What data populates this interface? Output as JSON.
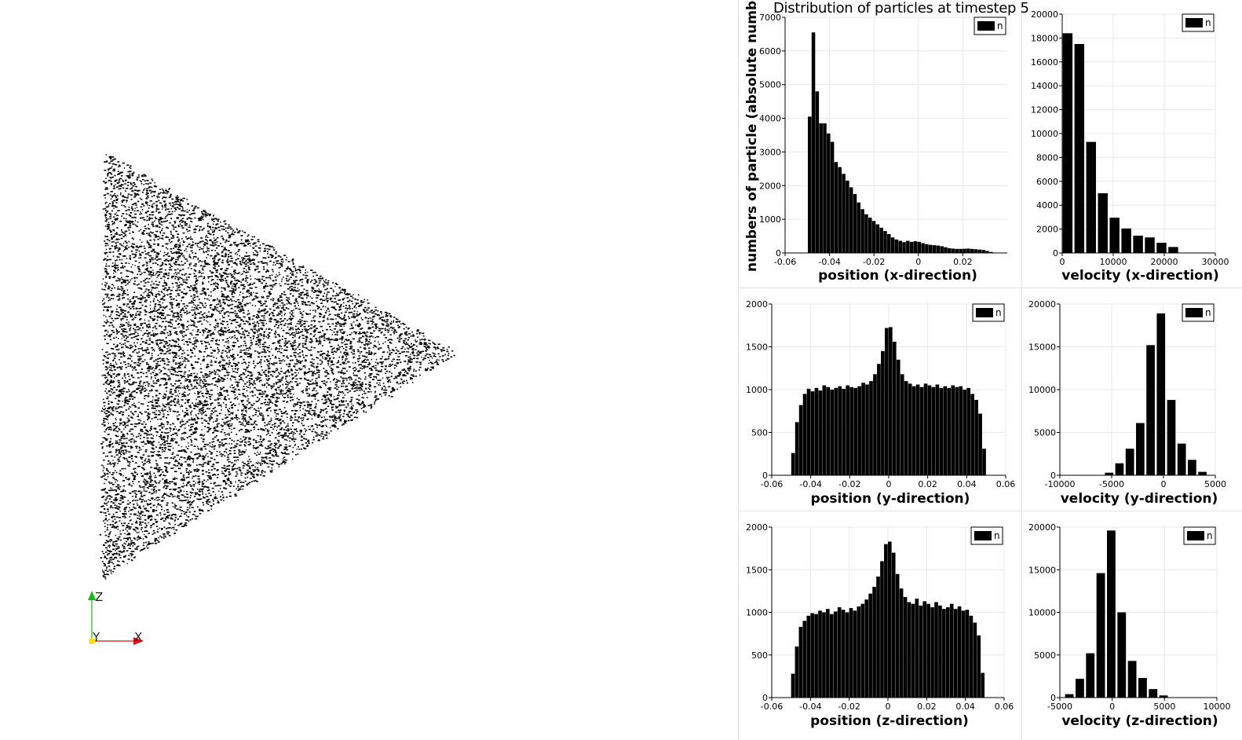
{
  "title": "Distribution of particles at timestep 5",
  "ylabel": "numbers of particle (absolute numbers)",
  "axes_widget": {
    "x_label": "X",
    "y_label": "Y",
    "z_label": "Z"
  },
  "colors": {
    "bar": "#000000",
    "x_axis": "#e01010",
    "y_axis": "#ffe000",
    "z_axis": "#10c010",
    "grid": "#e8e8e8"
  },
  "chart_data": [
    {
      "type": "bar",
      "xlabel": "position (x-direction)",
      "legend": "n",
      "legend_position": "top-right",
      "xlim": [
        -0.06,
        0.04
      ],
      "ylim": [
        0,
        7000
      ],
      "xticks": [
        -0.06,
        -0.04,
        -0.02,
        0,
        0.02
      ],
      "xtick_labels": [
        "-0.06",
        "-0.04",
        "-0.02",
        "0",
        "0.02"
      ],
      "yticks": [
        0,
        1000,
        2000,
        3000,
        4000,
        5000,
        6000,
        7000
      ],
      "ytick_labels": [
        "0",
        "1000",
        "2000",
        "3000",
        "4000",
        "5000",
        "6000",
        "7000"
      ],
      "x": [
        -0.0489,
        -0.0472,
        -0.0455,
        -0.0438,
        -0.0421,
        -0.0404,
        -0.0387,
        -0.037,
        -0.0353,
        -0.0336,
        -0.0319,
        -0.0302,
        -0.0285,
        -0.0268,
        -0.0251,
        -0.0234,
        -0.0217,
        -0.02,
        -0.0183,
        -0.0166,
        -0.0149,
        -0.0132,
        -0.0115,
        -0.0098,
        -0.0081,
        -0.0064,
        -0.0047,
        -0.003,
        -0.0013,
        0.0004,
        0.0021,
        0.0038,
        0.0055,
        0.0072,
        0.0089,
        0.0106,
        0.0123,
        0.014,
        0.0157,
        0.0174,
        0.0191,
        0.0208,
        0.0225,
        0.0242,
        0.0259,
        0.0276,
        0.0293,
        0.031,
        0.0327,
        0.0344
      ],
      "values": [
        4050,
        6550,
        4800,
        3850,
        3850,
        3550,
        3300,
        2700,
        2550,
        2350,
        2150,
        1950,
        1750,
        1500,
        1300,
        1150,
        1050,
        950,
        850,
        750,
        650,
        560,
        460,
        400,
        360,
        320,
        360,
        330,
        350,
        330,
        290,
        260,
        240,
        230,
        220,
        200,
        170,
        140,
        130,
        120,
        120,
        125,
        130,
        120,
        110,
        100,
        90,
        60,
        30,
        10
      ],
      "bar_width": 0.0017
    },
    {
      "type": "bar",
      "xlabel": "velocity (x-direction)",
      "legend": "n",
      "legend_position": "top-right",
      "xlim": [
        0,
        30000
      ],
      "ylim": [
        0,
        20000
      ],
      "xticks": [
        0,
        10000,
        20000,
        30000
      ],
      "xtick_labels": [
        "0",
        "10000",
        "20000",
        "30000"
      ],
      "yticks": [
        0,
        2000,
        4000,
        6000,
        8000,
        10000,
        12000,
        14000,
        16000,
        18000,
        20000
      ],
      "ytick_labels": [
        "0",
        "2000",
        "4000",
        "6000",
        "8000",
        "10000",
        "12000",
        "14000",
        "16000",
        "18000",
        "20000"
      ],
      "x": [
        1250,
        3550,
        5850,
        8150,
        10450,
        12750,
        15050,
        17350,
        19650,
        21950,
        24250
      ],
      "values": [
        18400,
        17500,
        9300,
        5000,
        2950,
        2050,
        1450,
        1300,
        850,
        500,
        0
      ],
      "bar_width": 2300
    },
    {
      "type": "bar",
      "xlabel": "position (y-direction)",
      "legend": "n",
      "legend_position": "top-right",
      "xlim": [
        -0.06,
        0.06
      ],
      "ylim": [
        0,
        2000
      ],
      "xticks": [
        -0.06,
        -0.04,
        -0.02,
        0,
        0.02,
        0.04,
        0.06
      ],
      "xtick_labels": [
        "-0.06",
        "-0.04",
        "-0.02",
        "0",
        "0.02",
        "0.04",
        "0.06"
      ],
      "yticks": [
        0,
        500,
        1000,
        1500,
        2000
      ],
      "ytick_labels": [
        "0",
        "500",
        "1000",
        "1500",
        "2000"
      ],
      "x": [
        -0.049,
        -0.047,
        -0.045,
        -0.043,
        -0.041,
        -0.039,
        -0.037,
        -0.035,
        -0.033,
        -0.031,
        -0.029,
        -0.027,
        -0.025,
        -0.023,
        -0.021,
        -0.019,
        -0.017,
        -0.015,
        -0.013,
        -0.011,
        -0.009,
        -0.007,
        -0.005,
        -0.003,
        -0.001,
        0.001,
        0.003,
        0.005,
        0.007,
        0.009,
        0.011,
        0.013,
        0.015,
        0.017,
        0.019,
        0.021,
        0.023,
        0.025,
        0.027,
        0.029,
        0.031,
        0.033,
        0.035,
        0.037,
        0.039,
        0.041,
        0.043,
        0.045,
        0.047,
        0.049
      ],
      "values": [
        260,
        620,
        820,
        950,
        1010,
        980,
        1020,
        990,
        1050,
        1030,
        1000,
        1020,
        1040,
        1010,
        1050,
        1030,
        1020,
        1040,
        1080,
        1060,
        1100,
        1180,
        1300,
        1450,
        1720,
        1730,
        1560,
        1350,
        1180,
        1100,
        1070,
        1040,
        1060,
        1030,
        1070,
        1050,
        1030,
        1060,
        1020,
        1040,
        1020,
        1050,
        1030,
        1040,
        1000,
        1020,
        950,
        880,
        720,
        310
      ],
      "bar_width": 0.002
    },
    {
      "type": "bar",
      "xlabel": "velocity (y-direction)",
      "legend": "n",
      "legend_position": "top-right",
      "xlim": [
        -10000,
        5000
      ],
      "ylim": [
        0,
        20000
      ],
      "xticks": [
        -10000,
        -5000,
        0,
        5000
      ],
      "xtick_labels": [
        "-10000",
        "-5000",
        "0",
        "5000"
      ],
      "yticks": [
        0,
        5000,
        10000,
        15000,
        20000
      ],
      "ytick_labels": [
        "0",
        "5000",
        "10000",
        "15000",
        "20000"
      ],
      "x": [
        -5150,
        -4150,
        -3150,
        -2150,
        -1150,
        -150,
        850,
        1850,
        2850,
        3850,
        4850
      ],
      "values": [
        300,
        1400,
        3100,
        6100,
        15200,
        18900,
        8800,
        3700,
        1800,
        400,
        0
      ],
      "bar_width": 1000
    },
    {
      "type": "bar",
      "xlabel": "position (z-direction)",
      "legend": "n",
      "legend_position": "top-right",
      "xlim": [
        -0.06,
        0.06
      ],
      "ylim": [
        0,
        2000
      ],
      "xticks": [
        -0.06,
        -0.04,
        -0.02,
        0,
        0.02,
        0.04,
        0.06
      ],
      "xtick_labels": [
        "-0.06",
        "-0.04",
        "-0.02",
        "0",
        "0.02",
        "0.04",
        "0.06"
      ],
      "yticks": [
        0,
        500,
        1000,
        1500,
        2000
      ],
      "ytick_labels": [
        "0",
        "500",
        "1000",
        "1500",
        "2000"
      ],
      "x": [
        -0.049,
        -0.047,
        -0.045,
        -0.043,
        -0.041,
        -0.039,
        -0.037,
        -0.035,
        -0.033,
        -0.031,
        -0.029,
        -0.027,
        -0.025,
        -0.023,
        -0.021,
        -0.019,
        -0.017,
        -0.015,
        -0.013,
        -0.011,
        -0.009,
        -0.007,
        -0.005,
        -0.003,
        -0.001,
        0.001,
        0.003,
        0.005,
        0.007,
        0.009,
        0.011,
        0.013,
        0.015,
        0.017,
        0.019,
        0.021,
        0.023,
        0.025,
        0.027,
        0.029,
        0.031,
        0.033,
        0.035,
        0.037,
        0.039,
        0.041,
        0.043,
        0.045,
        0.047,
        0.049
      ],
      "values": [
        280,
        600,
        830,
        900,
        960,
        990,
        980,
        1020,
        1000,
        1040,
        980,
        1010,
        1060,
        1030,
        1000,
        1050,
        1020,
        1070,
        1100,
        1150,
        1220,
        1300,
        1420,
        1600,
        1800,
        1830,
        1700,
        1450,
        1280,
        1180,
        1120,
        1100,
        1160,
        1080,
        1130,
        1100,
        1060,
        1120,
        1080,
        1040,
        1060,
        1100,
        1040,
        1070,
        1020,
        1030,
        960,
        880,
        730,
        290
      ],
      "bar_width": 0.002
    },
    {
      "type": "bar",
      "xlabel": "velocity (z-direction)",
      "legend": "n",
      "legend_position": "top-right",
      "xlim": [
        -5000,
        10000
      ],
      "ylim": [
        0,
        20000
      ],
      "xticks": [
        -5000,
        0,
        5000,
        10000
      ],
      "xtick_labels": [
        "-5000",
        "0",
        "5000",
        "10000"
      ],
      "yticks": [
        0,
        5000,
        10000,
        15000,
        20000
      ],
      "ytick_labels": [
        "0",
        "5000",
        "10000",
        "15000",
        "20000"
      ],
      "x": [
        -5000,
        -4000,
        -3000,
        -2000,
        -1000,
        0,
        1000,
        2000,
        3000,
        4000,
        5000
      ],
      "values": [
        0,
        400,
        2200,
        5200,
        14600,
        19600,
        10000,
        4300,
        2300,
        1000,
        250
      ],
      "bar_width": 1000
    }
  ]
}
